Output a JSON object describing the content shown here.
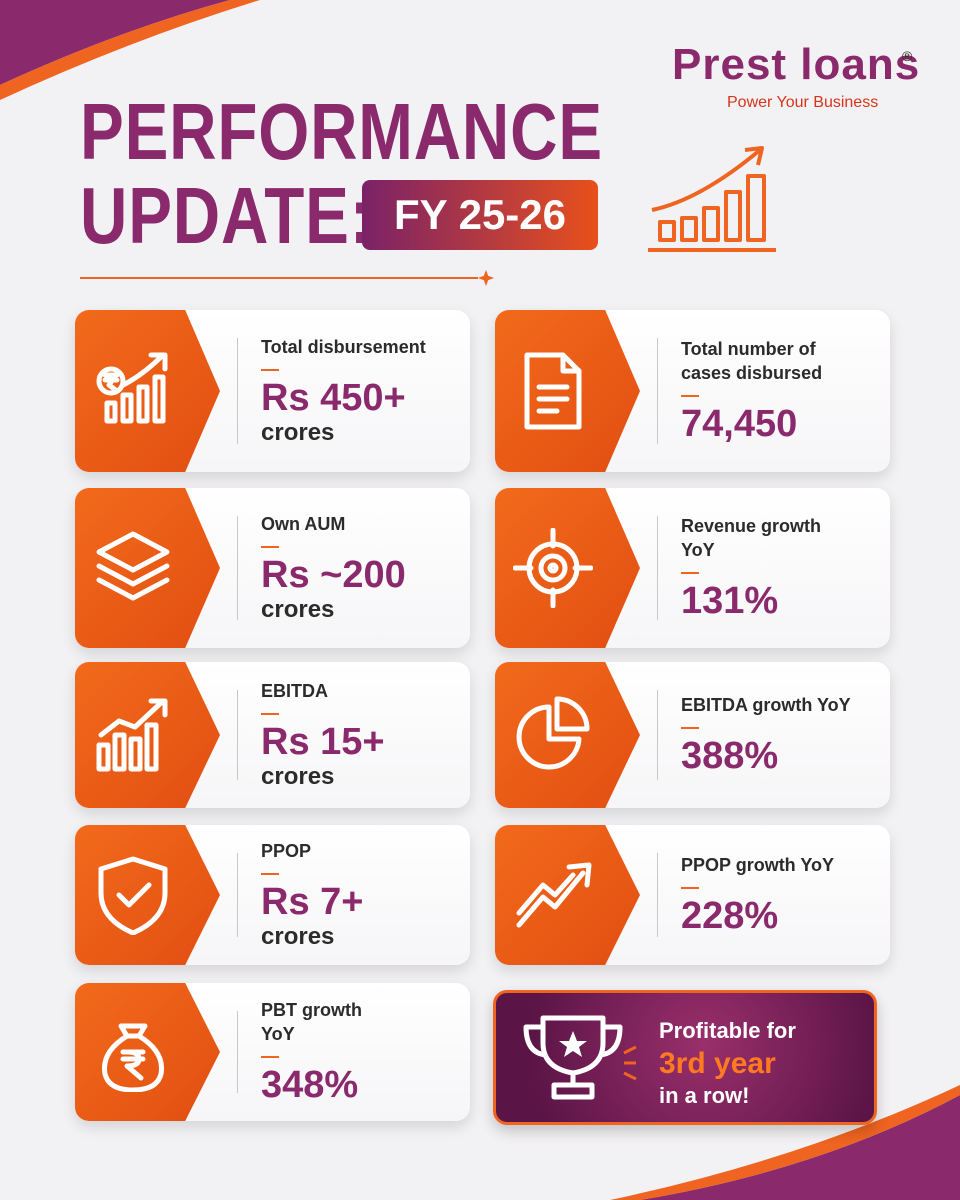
{
  "brand": {
    "name": "Prest loans",
    "registered": "®",
    "tagline": "Power Your Business"
  },
  "header": {
    "title_line1": "PERFORMANCE",
    "title_line2": "UPDATE:",
    "badge": "FY 25-26"
  },
  "cards": [
    {
      "label": "Total disbursement",
      "value": "Rs 450+",
      "unit": "crores"
    },
    {
      "label": "Total number of cases disbursed",
      "value": "74,450"
    },
    {
      "label": "Own AUM",
      "value": "Rs ~200",
      "unit": "crores"
    },
    {
      "label": "Revenue growth YoY",
      "value": "131%"
    },
    {
      "label": "EBITDA",
      "value": "Rs 15+",
      "unit": "crores"
    },
    {
      "label": "EBITDA growth YoY",
      "value": "388%"
    },
    {
      "label": "PPOP",
      "value": "Rs 7+",
      "unit": "crores"
    },
    {
      "label": "PPOP growth YoY",
      "value": "228%"
    },
    {
      "label": "PBT growth YoY",
      "value": "348%"
    }
  ],
  "highlight": {
    "line1": "Profitable for",
    "line2": "3rd year",
    "line3": "in a row!"
  }
}
